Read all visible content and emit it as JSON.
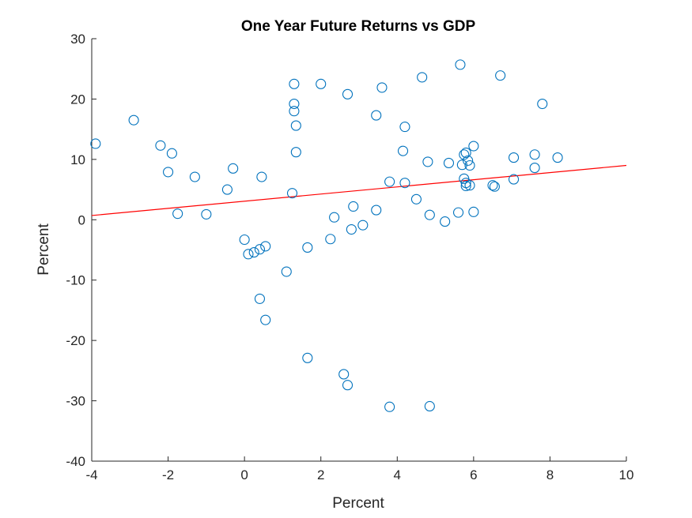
{
  "chart_data": {
    "type": "scatter",
    "title": "One Year Future Returns vs GDP",
    "xlabel": "Percent",
    "ylabel": "Percent",
    "xlim": [
      -4,
      10
    ],
    "ylim": [
      -40,
      30
    ],
    "xticks": [
      "-4",
      "-2",
      "0",
      "2",
      "4",
      "6",
      "8",
      "10"
    ],
    "yticks": [
      "-40",
      "-30",
      "-20",
      "-10",
      "0",
      "10",
      "20",
      "30"
    ],
    "grid": false,
    "colors": {
      "marker": "#0072BD",
      "fit_line": "#FF0000",
      "axes": "#262626"
    },
    "series": [
      {
        "marker": "open-circle",
        "points": [
          [
            -3.9,
            12.6
          ],
          [
            -2.9,
            16.5
          ],
          [
            -2.2,
            12.3
          ],
          [
            -1.9,
            11.0
          ],
          [
            -2.0,
            7.9
          ],
          [
            -1.75,
            1.0
          ],
          [
            -1.3,
            7.1
          ],
          [
            -1.0,
            0.9
          ],
          [
            -0.45,
            5.0
          ],
          [
            -0.3,
            8.5
          ],
          [
            0.0,
            -3.3
          ],
          [
            0.1,
            -5.7
          ],
          [
            0.25,
            -5.4
          ],
          [
            0.4,
            -4.9
          ],
          [
            0.55,
            -4.4
          ],
          [
            0.45,
            7.1
          ],
          [
            0.4,
            -13.1
          ],
          [
            0.55,
            -16.6
          ],
          [
            1.1,
            -8.6
          ],
          [
            1.25,
            4.4
          ],
          [
            1.3,
            22.5
          ],
          [
            1.3,
            19.2
          ],
          [
            1.3,
            18.0
          ],
          [
            1.35,
            15.6
          ],
          [
            1.35,
            11.2
          ],
          [
            1.65,
            -4.6
          ],
          [
            1.65,
            -22.9
          ],
          [
            2.0,
            22.5
          ],
          [
            2.25,
            -3.2
          ],
          [
            2.35,
            0.4
          ],
          [
            2.6,
            -25.6
          ],
          [
            2.7,
            -27.4
          ],
          [
            2.7,
            20.8
          ],
          [
            2.8,
            -1.6
          ],
          [
            2.85,
            2.2
          ],
          [
            3.1,
            -0.9
          ],
          [
            3.45,
            17.3
          ],
          [
            3.45,
            1.6
          ],
          [
            3.6,
            21.9
          ],
          [
            3.8,
            6.3
          ],
          [
            3.8,
            -31.0
          ],
          [
            4.15,
            11.4
          ],
          [
            4.2,
            15.4
          ],
          [
            4.2,
            6.1
          ],
          [
            4.5,
            3.4
          ],
          [
            4.65,
            23.6
          ],
          [
            4.8,
            9.6
          ],
          [
            4.85,
            0.8
          ],
          [
            4.85,
            -30.9
          ],
          [
            5.25,
            -0.3
          ],
          [
            5.35,
            9.4
          ],
          [
            5.6,
            1.2
          ],
          [
            5.65,
            25.7
          ],
          [
            5.7,
            9.1
          ],
          [
            5.75,
            6.8
          ],
          [
            5.75,
            10.8
          ],
          [
            5.8,
            11.1
          ],
          [
            5.8,
            6.1
          ],
          [
            5.8,
            5.6
          ],
          [
            5.85,
            9.8
          ],
          [
            5.9,
            5.7
          ],
          [
            5.9,
            9.0
          ],
          [
            6.0,
            12.2
          ],
          [
            6.0,
            1.3
          ],
          [
            6.5,
            5.7
          ],
          [
            6.55,
            5.5
          ],
          [
            6.7,
            23.9
          ],
          [
            7.05,
            10.3
          ],
          [
            7.05,
            6.7
          ],
          [
            7.6,
            10.8
          ],
          [
            7.6,
            8.6
          ],
          [
            7.8,
            19.2
          ],
          [
            8.2,
            10.3
          ]
        ]
      }
    ],
    "fit_line": {
      "x": [
        -4,
        10
      ],
      "y": [
        0.7,
        9.0
      ]
    }
  }
}
